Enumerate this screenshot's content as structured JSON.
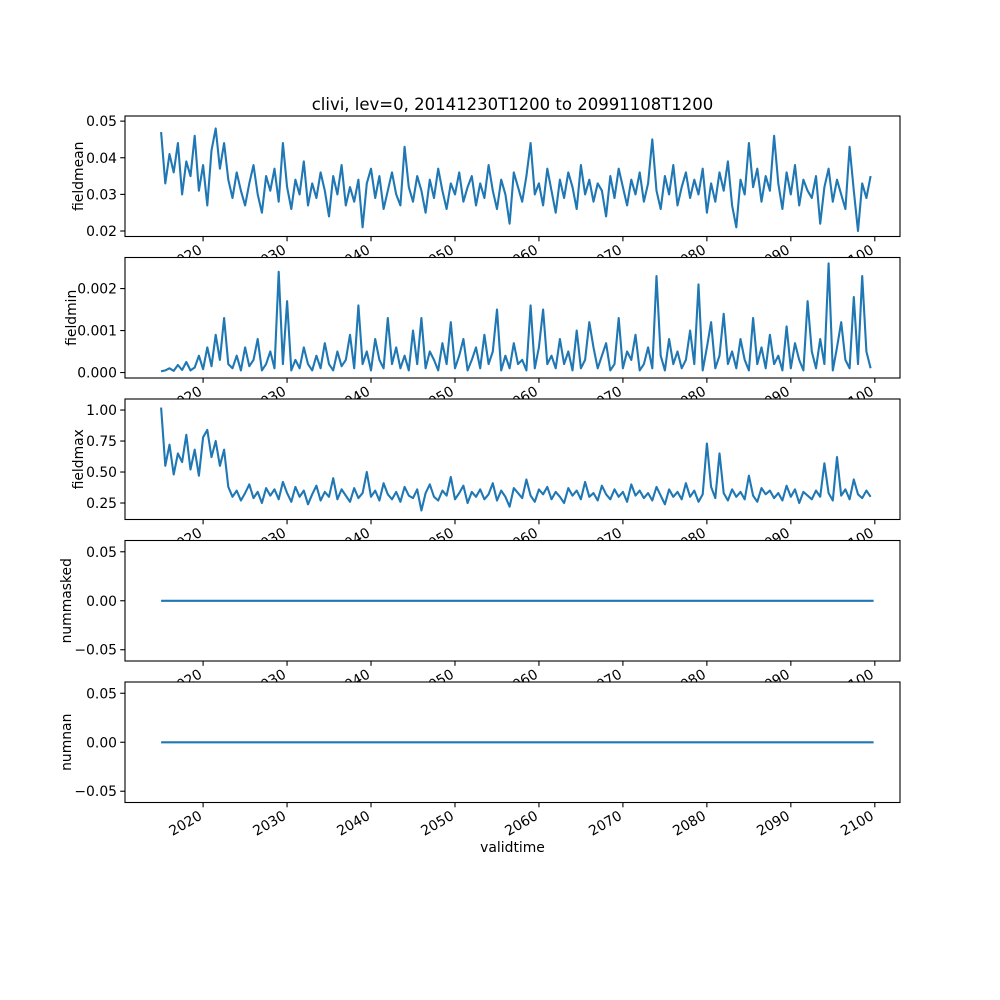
{
  "figure": {
    "title": "clivi, lev=0, 20141230T1200 to 20991108T1200",
    "xlabel": "validtime",
    "line_color": "#1f77b4",
    "text_color": "#000000",
    "background_color": "#ffffff"
  },
  "x_axis": {
    "label": "validtime",
    "lim": [
      2010.7,
      2103.0
    ],
    "ticks": [
      2020,
      2030,
      2040,
      2050,
      2060,
      2070,
      2080,
      2090,
      2100
    ],
    "tick_labels": [
      "2020",
      "2030",
      "2040",
      "2050",
      "2060",
      "2070",
      "2080",
      "2090",
      "2100"
    ],
    "tick_rotation_deg": 30
  },
  "chart_data": [
    {
      "type": "line",
      "name": "fieldmean",
      "ylabel": "fieldmean",
      "ylim": [
        0.0185,
        0.0514
      ],
      "yticks": [
        0.02,
        0.03,
        0.04,
        0.05
      ],
      "ytick_labels": [
        "0.02",
        "0.03",
        "0.04",
        "0.05"
      ],
      "x_start": 2015.0,
      "x_step": 0.5,
      "y_scale": 0.001,
      "values": [
        47,
        33,
        41,
        36,
        44,
        30,
        39,
        35,
        46,
        31,
        38,
        27,
        42,
        48,
        37,
        44,
        34,
        29,
        36,
        31,
        27,
        33,
        38,
        30,
        25,
        35,
        31,
        37,
        28,
        44,
        32,
        26,
        34,
        30,
        39,
        27,
        33,
        29,
        36,
        31,
        24,
        35,
        30,
        38,
        27,
        32,
        28,
        34,
        21,
        33,
        37,
        29,
        35,
        26,
        31,
        36,
        30,
        27,
        43,
        32,
        28,
        35,
        31,
        25,
        34,
        29,
        37,
        31,
        26,
        33,
        30,
        36,
        28,
        32,
        35,
        27,
        33,
        29,
        38,
        31,
        26,
        34,
        30,
        22,
        36,
        32,
        28,
        35,
        44,
        30,
        33,
        27,
        37,
        31,
        25,
        34,
        29,
        36,
        32,
        26,
        38,
        30,
        34,
        28,
        33,
        31,
        24,
        35,
        29,
        37,
        32,
        27,
        34,
        30,
        36,
        28,
        33,
        45,
        31,
        26,
        35,
        30,
        38,
        27,
        32,
        36,
        29,
        34,
        30,
        37,
        25,
        33,
        28,
        36,
        31,
        39,
        27,
        21,
        34,
        30,
        44,
        32,
        37,
        28,
        35,
        31,
        46,
        33,
        26,
        36,
        30,
        38,
        27,
        34,
        31,
        29,
        35,
        22,
        32,
        37,
        28,
        34,
        30,
        26,
        43,
        31,
        20,
        33,
        29,
        35
      ]
    },
    {
      "type": "line",
      "name": "fieldmin",
      "ylabel": "fieldmin",
      "ylim": [
        -0.00013,
        0.00274
      ],
      "yticks": [
        0.0,
        0.001,
        0.002
      ],
      "ytick_labels": [
        "0.000",
        "0.001",
        "0.002"
      ],
      "x_start": 2015.0,
      "x_step": 0.5,
      "y_scale": 0.0001,
      "values": [
        0.3,
        0.5,
        1,
        0.4,
        1.8,
        0.6,
        2.5,
        0.5,
        1.2,
        4,
        0.8,
        6,
        1.5,
        9,
        3,
        13,
        2,
        1,
        4,
        0.5,
        6,
        1.5,
        3,
        8,
        0.5,
        2,
        5,
        1,
        24,
        2,
        17,
        0.5,
        3,
        1,
        6,
        2,
        0.5,
        4,
        1,
        7,
        2,
        0.5,
        5,
        1.5,
        3,
        9,
        1,
        16,
        2,
        5,
        0.5,
        8,
        3,
        1,
        13,
        2,
        6,
        1,
        4,
        0.5,
        10,
        2,
        13,
        1,
        5,
        3,
        0.5,
        7,
        2,
        12,
        1,
        4,
        8,
        0.5,
        3,
        6,
        1,
        9,
        2,
        5,
        15,
        0.5,
        4,
        1,
        7,
        2,
        3,
        0.5,
        16,
        1,
        6,
        15,
        2,
        4,
        1,
        8,
        2,
        5,
        0.5,
        10,
        1,
        3,
        12,
        6,
        1,
        4,
        7,
        0.5,
        2,
        13,
        1,
        5,
        3,
        9,
        0.5,
        2,
        6,
        1,
        23,
        4,
        0.5,
        8,
        2,
        5,
        1,
        3,
        10,
        2,
        21,
        0.5,
        6,
        12,
        1,
        4,
        14,
        2,
        5,
        1,
        8,
        3,
        0.5,
        13,
        2,
        6,
        1,
        9,
        2,
        4,
        0.5,
        11,
        1,
        7,
        3,
        0.5,
        17,
        5,
        1,
        8,
        2,
        26,
        0.5,
        6,
        12,
        3,
        1,
        18,
        2,
        23,
        5,
        1
      ]
    },
    {
      "type": "line",
      "name": "fieldmax",
      "ylabel": "fieldmax",
      "ylim": [
        0.117,
        1.089
      ],
      "yticks": [
        0.25,
        0.5,
        0.75,
        1.0
      ],
      "ytick_labels": [
        "0.25",
        "0.50",
        "0.75",
        "1.00"
      ],
      "x_start": 2015.0,
      "x_step": 0.5,
      "values": [
        1.02,
        0.55,
        0.72,
        0.48,
        0.65,
        0.58,
        0.8,
        0.52,
        0.68,
        0.47,
        0.78,
        0.84,
        0.62,
        0.75,
        0.55,
        0.68,
        0.38,
        0.3,
        0.35,
        0.27,
        0.33,
        0.4,
        0.29,
        0.34,
        0.25,
        0.37,
        0.31,
        0.36,
        0.28,
        0.42,
        0.33,
        0.26,
        0.38,
        0.3,
        0.35,
        0.24,
        0.32,
        0.39,
        0.27,
        0.34,
        0.3,
        0.45,
        0.28,
        0.36,
        0.31,
        0.26,
        0.37,
        0.29,
        0.33,
        0.5,
        0.3,
        0.35,
        0.27,
        0.41,
        0.32,
        0.28,
        0.34,
        0.26,
        0.38,
        0.31,
        0.29,
        0.36,
        0.19,
        0.33,
        0.4,
        0.3,
        0.27,
        0.35,
        0.31,
        0.46,
        0.28,
        0.33,
        0.39,
        0.25,
        0.34,
        0.3,
        0.36,
        0.28,
        0.32,
        0.41,
        0.27,
        0.35,
        0.3,
        0.22,
        0.37,
        0.33,
        0.29,
        0.44,
        0.31,
        0.26,
        0.36,
        0.32,
        0.38,
        0.28,
        0.34,
        0.3,
        0.25,
        0.37,
        0.31,
        0.35,
        0.28,
        0.42,
        0.3,
        0.33,
        0.27,
        0.39,
        0.32,
        0.28,
        0.36,
        0.3,
        0.34,
        0.26,
        0.4,
        0.31,
        0.35,
        0.29,
        0.33,
        0.27,
        0.38,
        0.31,
        0.24,
        0.36,
        0.3,
        0.34,
        0.28,
        0.41,
        0.3,
        0.35,
        0.26,
        0.32,
        0.73,
        0.38,
        0.29,
        0.65,
        0.33,
        0.27,
        0.36,
        0.3,
        0.34,
        0.28,
        0.47,
        0.31,
        0.26,
        0.37,
        0.32,
        0.35,
        0.29,
        0.33,
        0.27,
        0.39,
        0.3,
        0.36,
        0.25,
        0.34,
        0.31,
        0.28,
        0.35,
        0.3,
        0.57,
        0.33,
        0.27,
        0.62,
        0.31,
        0.36,
        0.28,
        0.44,
        0.32,
        0.29,
        0.35,
        0.3
      ]
    },
    {
      "type": "line",
      "name": "nummasked",
      "ylabel": "nummasked",
      "ylim": [
        -0.0615,
        0.0615
      ],
      "yticks": [
        -0.05,
        0.0,
        0.05
      ],
      "ytick_labels": [
        "−0.05",
        "0.00",
        "0.05"
      ],
      "x_start": 2015.0,
      "x_step": 84.86,
      "values": [
        0,
        0
      ]
    },
    {
      "type": "line",
      "name": "numnan",
      "ylabel": "numnan",
      "ylim": [
        -0.0615,
        0.0615
      ],
      "yticks": [
        -0.05,
        0.0,
        0.05
      ],
      "ytick_labels": [
        "−0.05",
        "0.00",
        "0.05"
      ],
      "x_start": 2015.0,
      "x_step": 84.86,
      "values": [
        0,
        0
      ]
    }
  ]
}
